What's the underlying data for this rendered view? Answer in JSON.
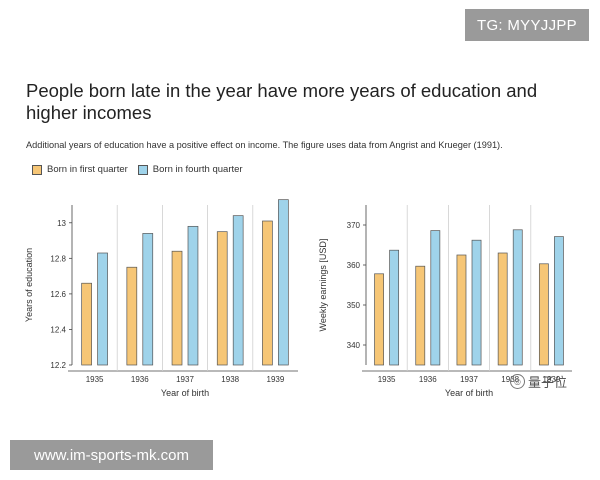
{
  "watermark_top": "TG: MYYJJPP",
  "watermark_bottom": "www.im-sports-mk.com",
  "title": "People born late in the year have more years of education and higher incomes",
  "subtitle": "Additional years of education have a positive effect on income. The figure uses data from Angrist and Krueger (1991).",
  "legend": {
    "q1": "Born in first quarter",
    "q4": "Born in fourth quarter"
  },
  "colors": {
    "q1": "#f6c676",
    "q4": "#9fd3ea",
    "stroke": "#555555",
    "grid": "#cfcfcf"
  },
  "tag": {
    "icon": "logo-icon",
    "text": "量子位"
  },
  "chart_data": [
    {
      "type": "bar",
      "categories": [
        "1935",
        "1936",
        "1937",
        "1938",
        "1939"
      ],
      "series": [
        {
          "name": "Born in first quarter",
          "values": [
            12.66,
            12.75,
            12.84,
            12.95,
            13.01
          ]
        },
        {
          "name": "Born in fourth quarter",
          "values": [
            12.83,
            12.94,
            12.98,
            13.04,
            13.13
          ]
        }
      ],
      "xlabel": "Year of birth",
      "ylabel": "Years of education",
      "ylim": [
        12.2,
        13.1
      ],
      "yticks": [
        "12.2",
        "12.4",
        "12.6",
        "12.8",
        "13"
      ],
      "ytick_values": [
        12.2,
        12.4,
        12.6,
        12.8,
        13.0
      ],
      "grid": "vertical separators"
    },
    {
      "type": "bar",
      "categories": [
        "1935",
        "1936",
        "1937",
        "1938",
        "1939"
      ],
      "series": [
        {
          "name": "Born in first quarter",
          "values": [
            357.8,
            359.7,
            362.5,
            363.0,
            360.3
          ]
        },
        {
          "name": "Born in fourth quarter",
          "values": [
            363.7,
            368.6,
            366.2,
            368.8,
            367.1
          ]
        }
      ],
      "xlabel": "Year of birth",
      "ylabel": "Weekly earnings [USD]",
      "ylim": [
        335,
        375
      ],
      "yticks": [
        "340",
        "350",
        "360",
        "370"
      ],
      "ytick_values": [
        340,
        350,
        360,
        370
      ],
      "grid": "vertical separators"
    }
  ]
}
